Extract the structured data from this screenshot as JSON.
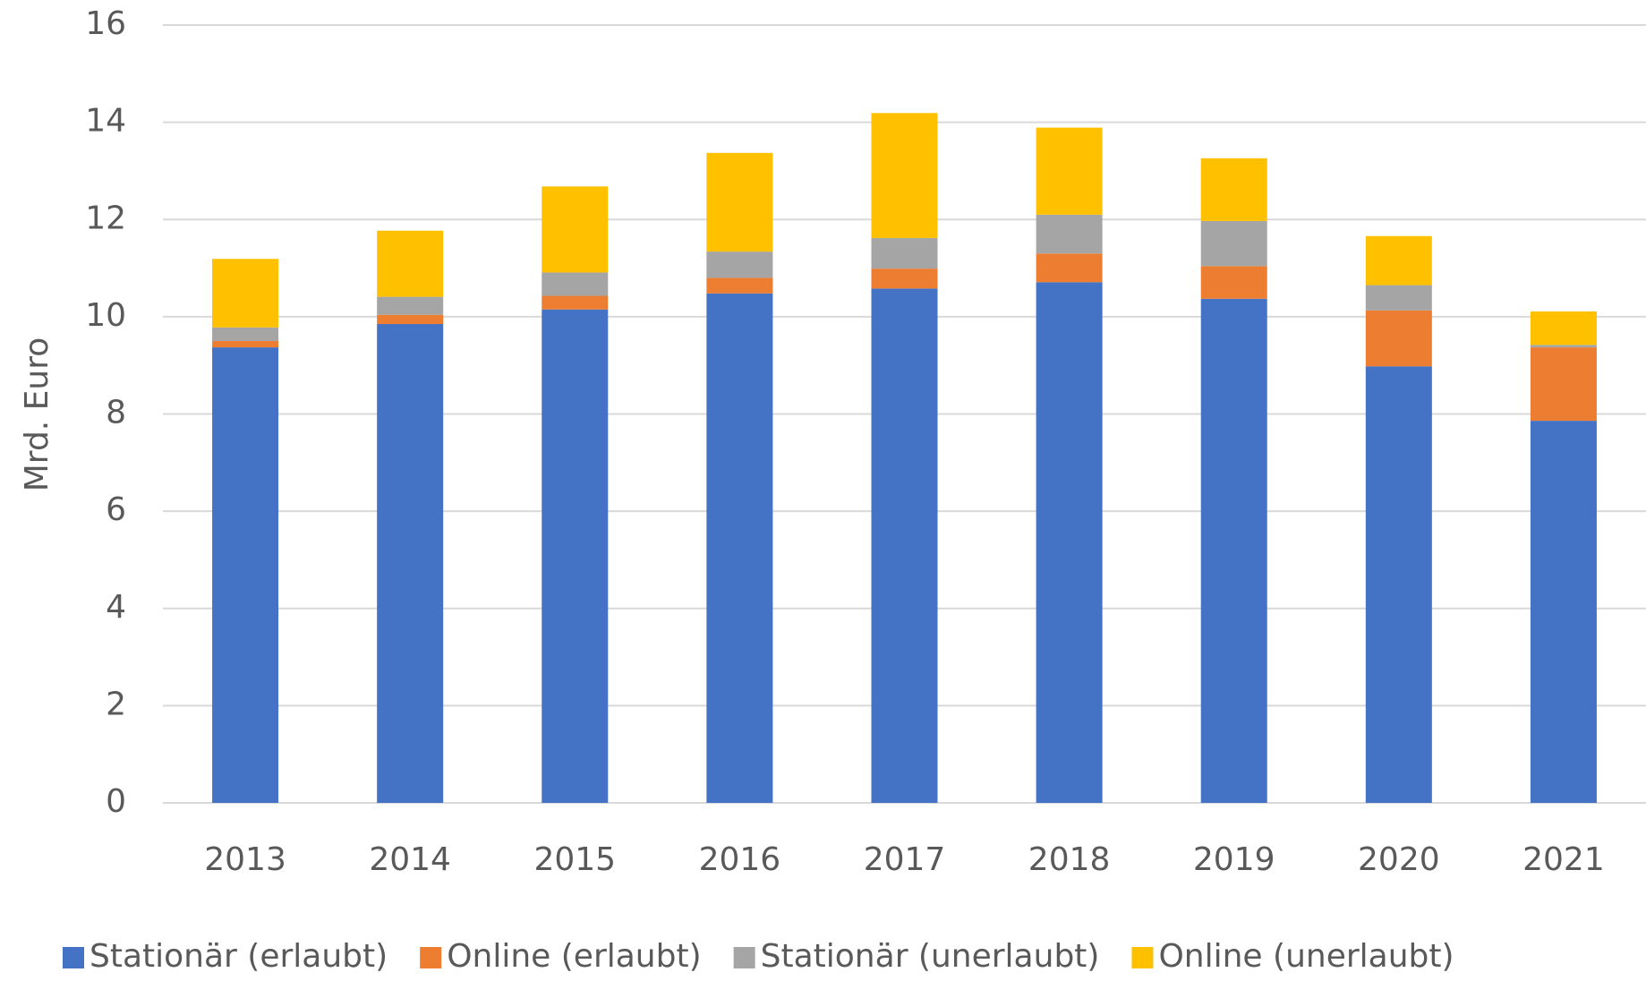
{
  "chart_data": {
    "type": "stacked_bar",
    "y_axis_label": "Mrd. Euro",
    "categories": [
      "2013",
      "2014",
      "2015",
      "2016",
      "2017",
      "2018",
      "2019",
      "2020",
      "2021"
    ],
    "series": [
      {
        "name": "Stationär (erlaubt)",
        "color": "#4472c4",
        "values": [
          9.37,
          9.85,
          10.15,
          10.48,
          10.58,
          10.71,
          10.37,
          8.98,
          7.86
        ]
      },
      {
        "name": "Online (erlaubt)",
        "color": "#ed7d31",
        "values": [
          0.13,
          0.19,
          0.28,
          0.32,
          0.41,
          0.59,
          0.67,
          1.15,
          1.51
        ]
      },
      {
        "name": "Stationär (unerlaubt)",
        "color": "#a5a5a5",
        "values": [
          0.28,
          0.37,
          0.48,
          0.54,
          0.63,
          0.8,
          0.93,
          0.52,
          0.05
        ]
      },
      {
        "name": "Online (unerlaubt)",
        "color": "#ffc000",
        "values": [
          1.41,
          1.36,
          1.77,
          2.03,
          2.57,
          1.79,
          1.29,
          1.01,
          0.69
        ]
      }
    ],
    "ylim": [
      0,
      16
    ],
    "yticks": [
      0,
      2,
      4,
      6,
      8,
      10,
      12,
      14,
      16
    ],
    "grid": true,
    "legend": "bottom"
  }
}
